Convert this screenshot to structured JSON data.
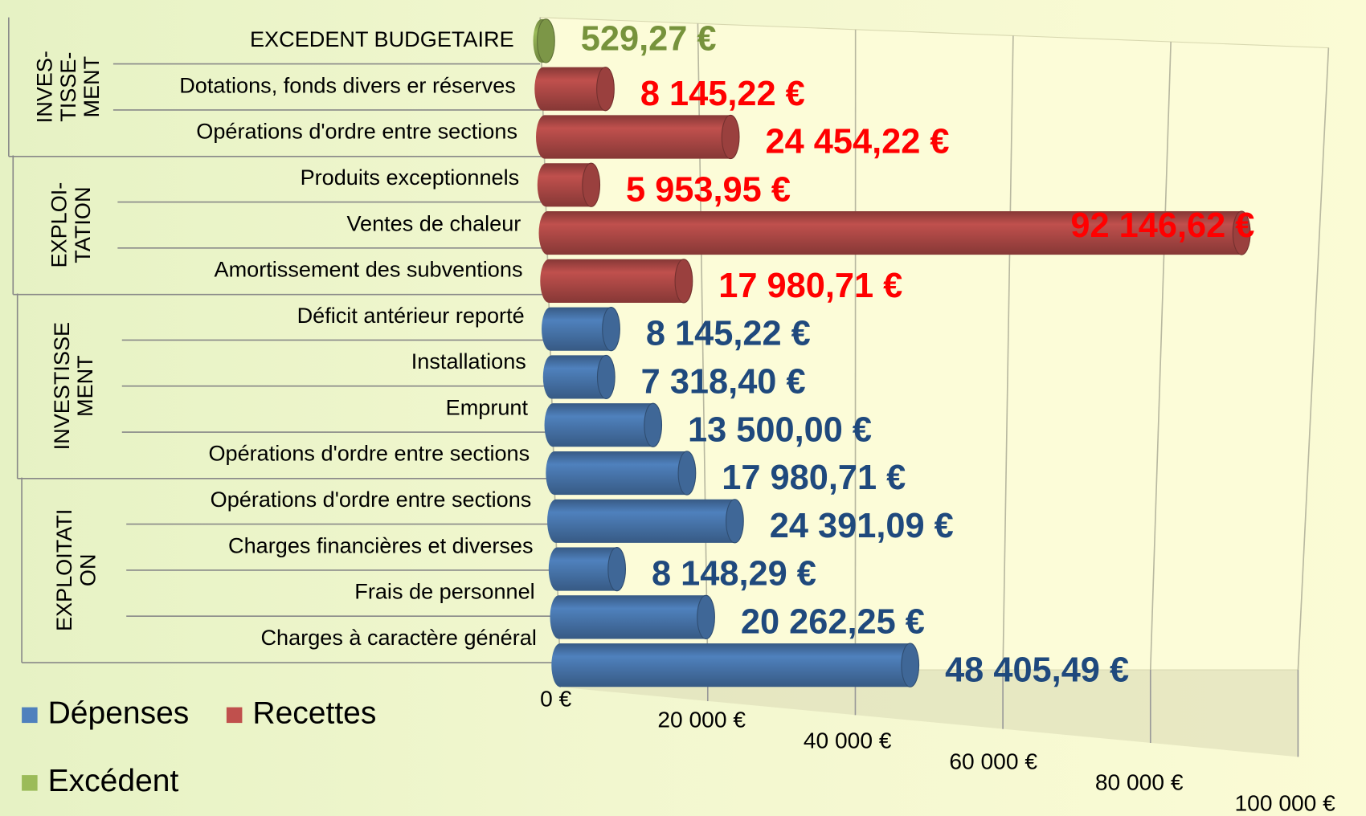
{
  "chart_data": {
    "type": "bar",
    "orientation": "horizontal",
    "style": "3d-cylinder",
    "groups": [
      {
        "label": [
          "INVES-",
          "TISSE-",
          "MENT"
        ],
        "categories": [
          "EXCEDENT BUDGETAIRE",
          "Dotations, fonds divers er réserves",
          "Opérations d'ordre entre sections"
        ]
      },
      {
        "label": [
          "EXPLOI-",
          "TATION"
        ],
        "categories": [
          "Produits exceptionnels",
          "Ventes de chaleur",
          "Amortissement des subventions"
        ]
      },
      {
        "label": [
          "INVESTISSE",
          "MENT"
        ],
        "categories": [
          "Déficit antérieur reporté",
          "Installations",
          "Emprunt",
          "Opérations d'ordre entre sections"
        ]
      },
      {
        "label": [
          "EXPLOITATI",
          "ON"
        ],
        "categories": [
          "Opérations d'ordre entre sections",
          "Charges financières et diverses",
          "Frais de personnel",
          "Charges à caractère général"
        ]
      }
    ],
    "series": [
      {
        "name": "Dépenses",
        "color": "#4f81bd",
        "label_color": "#1f497d",
        "values": [
          null,
          null,
          null,
          null,
          null,
          null,
          8145.22,
          7318.4,
          13500.0,
          17980.71,
          24391.09,
          8148.29,
          20262.25,
          48405.49
        ],
        "value_labels": [
          null,
          null,
          null,
          null,
          null,
          null,
          "8 145,22 €",
          "7 318,40 €",
          "13 500,00 €",
          "17 980,71 €",
          "24 391,09 €",
          "8 148,29 €",
          "20 262,25 €",
          "48 405,49 €"
        ]
      },
      {
        "name": "Recettes",
        "color": "#c0504d",
        "label_color": "#ff0000",
        "values": [
          null,
          8145.22,
          24454.22,
          5953.95,
          92146.62,
          17980.71,
          null,
          null,
          null,
          null,
          null,
          null,
          null,
          null
        ],
        "value_labels": [
          null,
          "8 145,22 €",
          "24 454,22 €",
          "5 953,95 €",
          "92 146,62 €",
          "17 980,71 €",
          null,
          null,
          null,
          null,
          null,
          null,
          null,
          null
        ]
      },
      {
        "name": "Excédent",
        "color": "#9bbb59",
        "label_color": "#77933c",
        "values": [
          529.27,
          null,
          null,
          null,
          null,
          null,
          null,
          null,
          null,
          null,
          null,
          null,
          null,
          null
        ],
        "value_labels": [
          "529,27 €",
          null,
          null,
          null,
          null,
          null,
          null,
          null,
          null,
          null,
          null,
          null,
          null,
          null
        ]
      }
    ],
    "xlim": [
      0,
      100000
    ],
    "xticks": [
      {
        "value": 0,
        "label": "0 €"
      },
      {
        "value": 20000,
        "label": "20 000 €"
      },
      {
        "value": 40000,
        "label": "40 000 €"
      },
      {
        "value": 60000,
        "label": "60 000 €"
      },
      {
        "value": 80000,
        "label": "80 000 €"
      },
      {
        "value": 100000,
        "label": "100 000 €"
      }
    ],
    "grid": true,
    "legend": "bottom-left"
  }
}
